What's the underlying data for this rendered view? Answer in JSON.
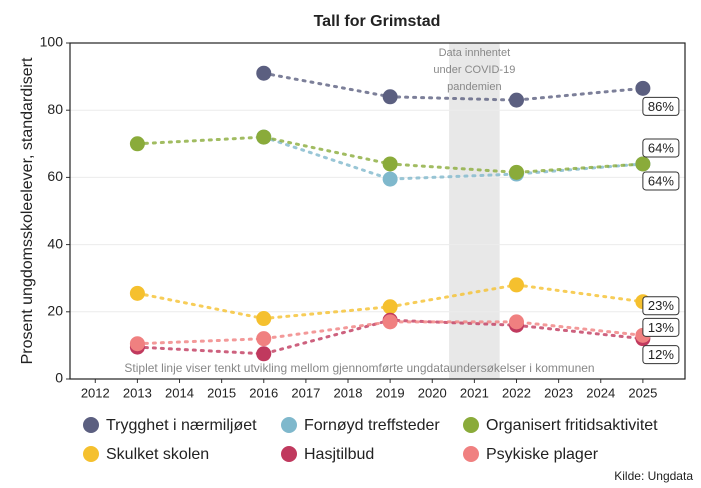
{
  "chart_data": {
    "type": "line",
    "title": "Tall for Grimstad",
    "y_label": "Prosent ungdomsskoleelever, standardisert",
    "x": [
      2013,
      2016,
      2019,
      2022,
      2025
    ],
    "series": [
      {
        "name": "Trygghet i nærmiljøet",
        "color": "#5b5f80",
        "values": [
          null,
          91,
          84,
          83,
          86.5
        ],
        "value_labels": [
          null,
          null,
          null,
          null,
          "86%"
        ]
      },
      {
        "name": "Fornøyd treffsteder",
        "color": "#7fb8cc",
        "values": [
          null,
          72,
          59.5,
          61,
          64
        ],
        "value_labels": [
          null,
          null,
          null,
          null,
          "64%"
        ]
      },
      {
        "name": "Organisert fritidsaktivitet",
        "color": "#8aab3a",
        "values": [
          70,
          72,
          64,
          61.5,
          64
        ],
        "value_labels": [
          null,
          null,
          null,
          null,
          "64%"
        ]
      },
      {
        "name": "Skulket skolen",
        "color": "#f5c02e",
        "values": [
          25.5,
          18,
          21.5,
          28,
          23
        ],
        "value_labels": [
          null,
          null,
          null,
          null,
          "23%"
        ]
      },
      {
        "name": "Hasjtilbud",
        "color": "#c0395e",
        "values": [
          9.5,
          7.5,
          17.5,
          16,
          12
        ],
        "value_labels": [
          null,
          null,
          null,
          null,
          "12%"
        ]
      },
      {
        "name": "Psykiske plager",
        "color": "#f08080",
        "values": [
          10.5,
          12,
          17,
          17,
          13
        ],
        "value_labels": [
          null,
          null,
          null,
          null,
          "13%"
        ]
      }
    ],
    "xlim": [
      2011.4,
      2026.0
    ],
    "xticks": [
      2012,
      2013,
      2014,
      2015,
      2016,
      2017,
      2018,
      2019,
      2020,
      2021,
      2022,
      2023,
      2024,
      2025
    ],
    "ylim": [
      0,
      100
    ],
    "yticks": [
      0,
      20,
      40,
      60,
      80,
      100
    ],
    "grid": true,
    "shaded_region": {
      "x": [
        2020.4,
        2021.6
      ],
      "label_lines": [
        "Data innhentet",
        "under COVID-19",
        "pandemien"
      ]
    },
    "note": "Stiplet linje viser tenkt utvikling mellom gjennomførte ungdataundersøkelser i kommunen",
    "source": "Kilde: Ungdata",
    "legend": "bottom"
  }
}
